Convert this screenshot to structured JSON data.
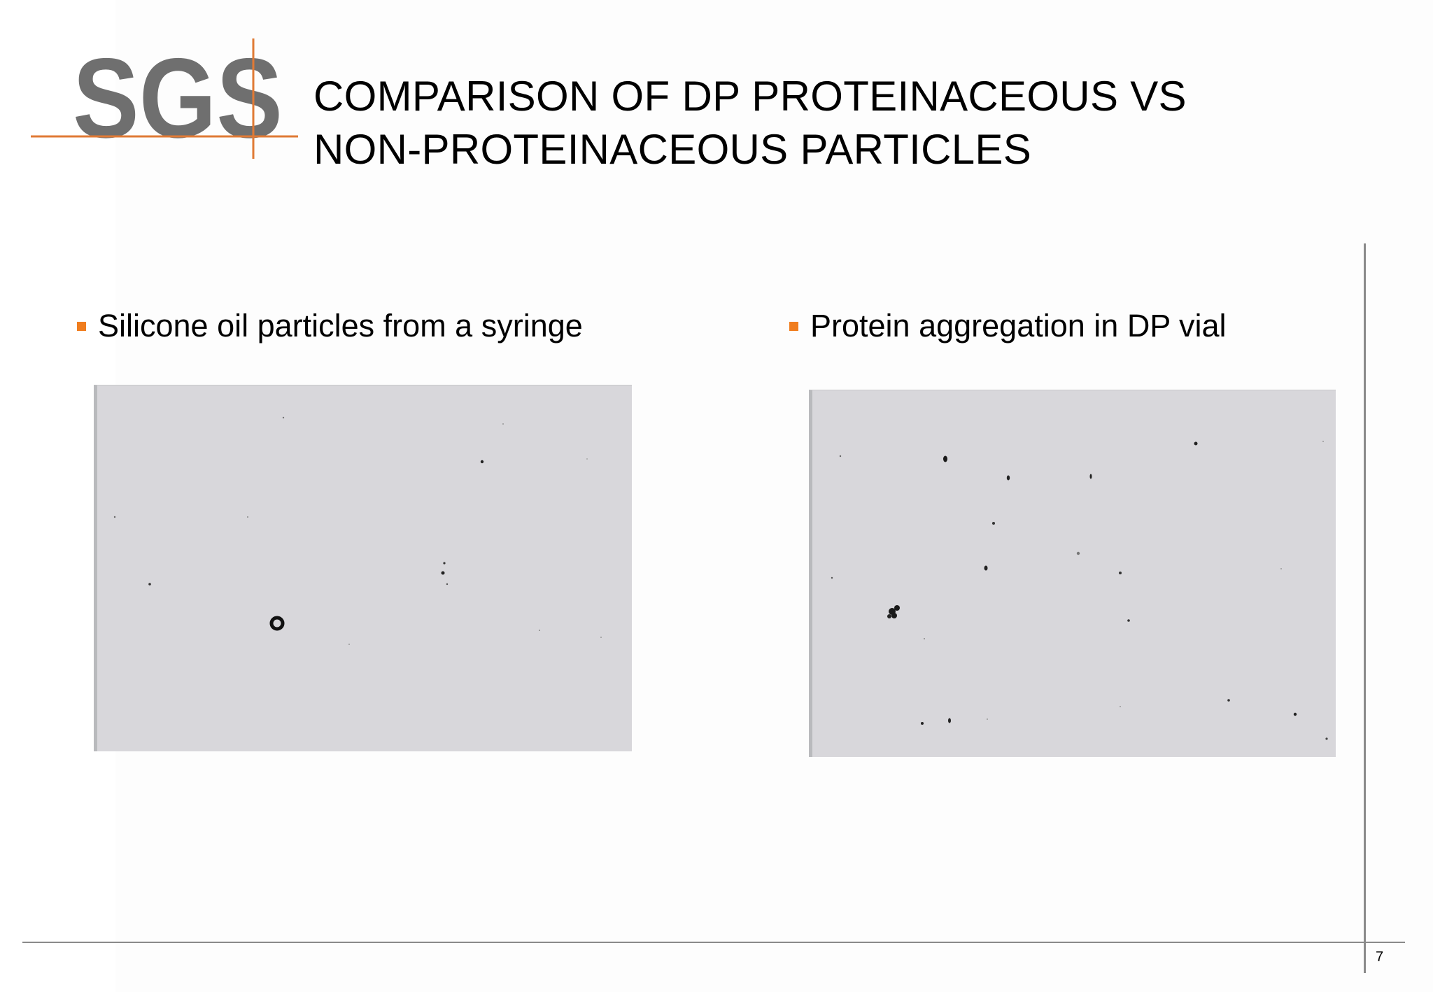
{
  "logo": {
    "text": "SGS",
    "text_color": "#6f6f6f",
    "line_color": "#e07a35"
  },
  "title": {
    "line1": "COMPARISON OF DP PROTEINACEOUS VS",
    "line2": "NON-PROTEINACEOUS PARTICLES"
  },
  "bullets": {
    "left": "Silicone oil particles from a syringe",
    "right": "Protein aggregation in DP vial",
    "marker_color": "#f07d1e"
  },
  "images": {
    "left": {
      "icon": "silicone-oil-micrograph"
    },
    "right": {
      "icon": "protein-aggregate-micrograph"
    }
  },
  "footer": {
    "page_number": "7"
  }
}
